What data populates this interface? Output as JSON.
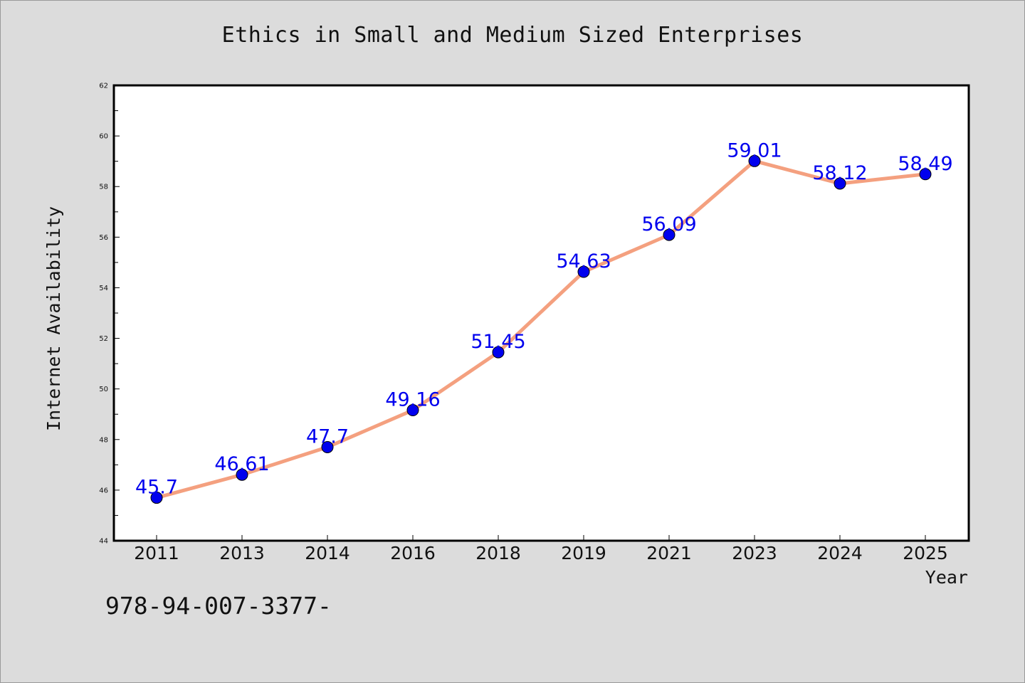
{
  "chart_data": {
    "type": "line",
    "title": "Ethics in Small and Medium Sized Enterprises",
    "xlabel": "Year",
    "ylabel": "Internet Availability",
    "categories": [
      "2011",
      "2013",
      "2014",
      "2016",
      "2018",
      "2019",
      "2021",
      "2023",
      "2024",
      "2025"
    ],
    "series": [
      {
        "values": [
          45.7,
          46.61,
          47.7,
          49.16,
          51.45,
          54.63,
          56.09,
          59.01,
          58.12,
          58.49
        ],
        "data_labels": [
          "45.7",
          "46.61",
          "47.7",
          "49.16",
          "51.45",
          "54.63",
          "56.09",
          "59.01",
          "58.12",
          "58.49"
        ]
      }
    ],
    "ylim": [
      44,
      62
    ],
    "yticks": [
      "44",
      "46",
      "48",
      "50",
      "52",
      "54",
      "56",
      "58",
      "60",
      "62"
    ],
    "grid": false,
    "legend": "none",
    "line_color": "#f4a07f",
    "marker_color": "#0000ee",
    "label_color": "#0000ee",
    "background_color": "#dcdcdc",
    "plot_background": "#ffffff"
  },
  "footer_text": "978-94-007-3377-"
}
